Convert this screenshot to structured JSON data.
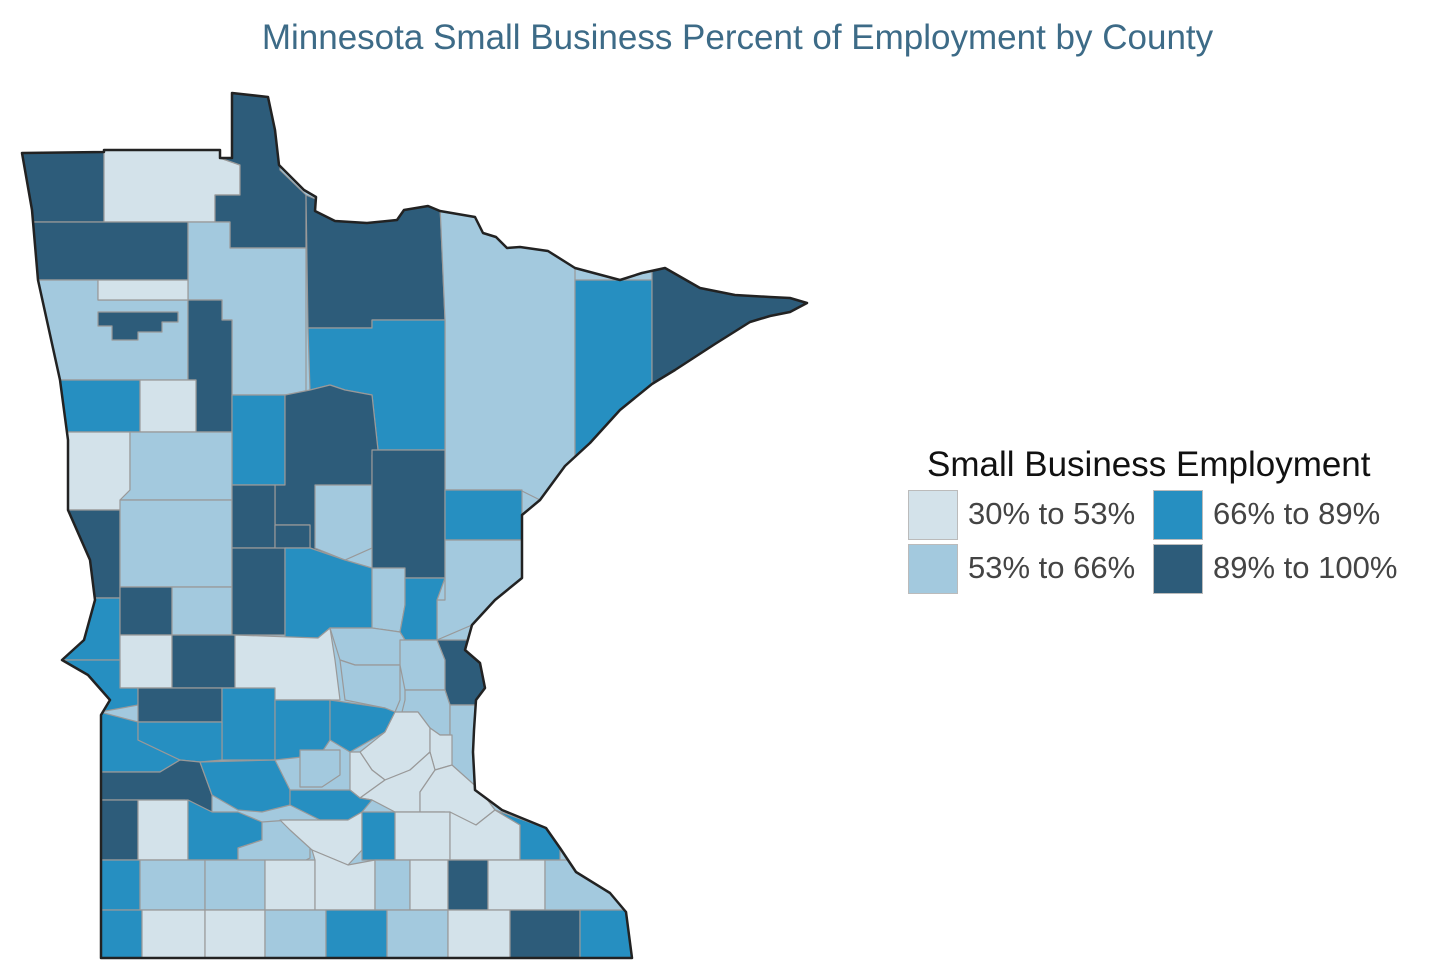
{
  "title": "Minnesota Small Business Percent of Employment by County",
  "legend": {
    "title": "Small Business Employment",
    "items": [
      {
        "label": "30% to 53%",
        "color": "#d3e2ea"
      },
      {
        "label": "53% to 66%",
        "color": "#a3c9de"
      },
      {
        "label": "66% to 89%",
        "color": "#268fc1"
      },
      {
        "label": "89% to 100%",
        "color": "#2d5c7a"
      }
    ]
  },
  "map": {
    "region": "Minnesota",
    "unit": "county",
    "classes": [
      "30% to 53%",
      "53% to 66%",
      "66% to 89%",
      "89% to 100%"
    ]
  }
}
